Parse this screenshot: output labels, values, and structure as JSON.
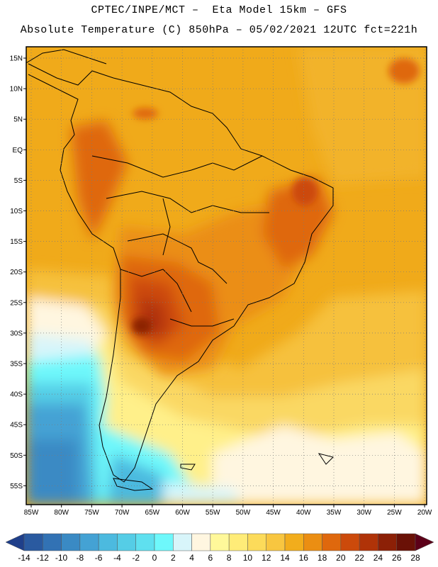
{
  "header": {
    "line1": "CPTEC/INPE/MCT –  Eta Model 15km – GFS",
    "line2": "Absolute Temperature (C) 850hPa – 05/02/2021 12UTC fct=221h"
  },
  "map": {
    "region": "South America",
    "lat_labels": [
      "15N",
      "10N",
      "5N",
      "EQ",
      "5S",
      "10S",
      "15S",
      "20S",
      "25S",
      "30S",
      "35S",
      "40S",
      "45S",
      "50S",
      "55S"
    ],
    "lon_labels": [
      "85W",
      "80W",
      "75W",
      "70W",
      "65W",
      "60W",
      "55W",
      "50W",
      "45W",
      "40W",
      "35W",
      "30W",
      "25W",
      "20W"
    ]
  },
  "colorbar": {
    "labels": [
      "-14",
      "-12",
      "-10",
      "-8",
      "-6",
      "-4",
      "-2",
      "0",
      "2",
      "4",
      "6",
      "8",
      "10",
      "12",
      "14",
      "16",
      "18",
      "20",
      "22",
      "24",
      "26",
      "28"
    ],
    "colors": [
      "#1f3f8a",
      "#2a5aa0",
      "#3272b4",
      "#3a8ac4",
      "#44a2d4",
      "#4cbadf",
      "#55cde6",
      "#5fe0ef",
      "#6ef8fb",
      "#d8f5fa",
      "#fff6e0",
      "#fff89a",
      "#ffec78",
      "#fcdb5a",
      "#f8c640",
      "#f2ad1c",
      "#eb8e12",
      "#df680d",
      "#cc4a0b",
      "#b03308",
      "#8c2006",
      "#6a1106",
      "#5c0018"
    ]
  }
}
